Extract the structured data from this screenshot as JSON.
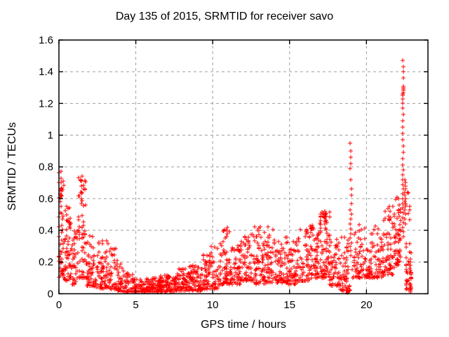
{
  "chart_data": {
    "type": "scatter",
    "title": "Day 135 of 2015, SRMTID for receiver savo",
    "xlabel": "GPS time / hours",
    "ylabel": "SRMTID / TECUs",
    "xlim": [
      0,
      24
    ],
    "ylim": [
      0,
      1.6
    ],
    "xticks": [
      {
        "v": 0,
        "label": "0"
      },
      {
        "v": 5,
        "label": "5"
      },
      {
        "v": 10,
        "label": "10"
      },
      {
        "v": 15,
        "label": "15"
      },
      {
        "v": 20,
        "label": "20"
      }
    ],
    "yticks": [
      {
        "v": 0.0,
        "label": "0"
      },
      {
        "v": 0.2,
        "label": "0.2"
      },
      {
        "v": 0.4,
        "label": "0.4"
      },
      {
        "v": 0.6,
        "label": "0.6"
      },
      {
        "v": 0.8,
        "label": "0.8"
      },
      {
        "v": 1.0,
        "label": "1"
      },
      {
        "v": 1.2,
        "label": "1.2"
      },
      {
        "v": 1.4,
        "label": "1.4"
      },
      {
        "v": 1.6,
        "label": "1.6"
      }
    ],
    "grid": {
      "show": true,
      "color": "#9e9e9e",
      "dash": "4 4"
    },
    "marker": {
      "shape": "plus",
      "color": "#ff0000",
      "size": 7
    },
    "border_color": "#000000",
    "seed": 42,
    "segment_fields": [
      "t_start",
      "t_end",
      "n_points",
      "value_min",
      "value_max",
      "skew_toward_min"
    ],
    "segments": [
      [
        0.0,
        0.35,
        55,
        0.1,
        0.77,
        1.6
      ],
      [
        0.35,
        0.8,
        55,
        0.08,
        0.56,
        1.5
      ],
      [
        0.8,
        1.25,
        45,
        0.06,
        0.45,
        1.8
      ],
      [
        1.25,
        1.75,
        55,
        0.1,
        0.74,
        1.6
      ],
      [
        1.75,
        2.2,
        45,
        0.05,
        0.38,
        1.8
      ],
      [
        2.2,
        2.7,
        45,
        0.04,
        0.34,
        1.9
      ],
      [
        2.7,
        3.2,
        45,
        0.03,
        0.34,
        2.0
      ],
      [
        3.2,
        3.7,
        40,
        0.03,
        0.3,
        2.2
      ],
      [
        3.7,
        4.2,
        40,
        0.02,
        0.22,
        2.2
      ],
      [
        4.2,
        4.8,
        45,
        0.01,
        0.13,
        2.0
      ],
      [
        4.8,
        5.5,
        60,
        0.01,
        0.1,
        1.8
      ],
      [
        5.5,
        6.5,
        95,
        0.01,
        0.1,
        1.8
      ],
      [
        6.5,
        7.5,
        95,
        0.01,
        0.12,
        1.8
      ],
      [
        7.5,
        8.5,
        95,
        0.02,
        0.16,
        1.9
      ],
      [
        8.5,
        9.3,
        80,
        0.02,
        0.18,
        1.9
      ],
      [
        9.3,
        9.9,
        55,
        0.03,
        0.26,
        2.0
      ],
      [
        9.9,
        10.4,
        40,
        0.03,
        0.3,
        2.0
      ],
      [
        10.4,
        11.2,
        70,
        0.06,
        0.43,
        1.9
      ],
      [
        11.2,
        11.9,
        60,
        0.06,
        0.32,
        1.8
      ],
      [
        11.9,
        12.6,
        65,
        0.08,
        0.39,
        1.8
      ],
      [
        12.6,
        13.4,
        70,
        0.06,
        0.43,
        1.8
      ],
      [
        13.4,
        14.1,
        65,
        0.07,
        0.43,
        1.8
      ],
      [
        14.1,
        14.8,
        60,
        0.07,
        0.36,
        1.8
      ],
      [
        14.8,
        15.5,
        60,
        0.06,
        0.34,
        1.8
      ],
      [
        15.5,
        16.3,
        65,
        0.08,
        0.43,
        1.8
      ],
      [
        16.3,
        17.0,
        65,
        0.1,
        0.44,
        1.7
      ],
      [
        17.0,
        17.6,
        80,
        0.1,
        0.52,
        1.5
      ],
      [
        17.6,
        18.3,
        55,
        0.05,
        0.36,
        1.8
      ],
      [
        18.3,
        18.9,
        55,
        0.02,
        0.36,
        1.9
      ],
      [
        19.1,
        19.7,
        50,
        0.1,
        0.46,
        1.7
      ],
      [
        19.7,
        20.4,
        55,
        0.1,
        0.43,
        1.7
      ],
      [
        20.4,
        21.1,
        55,
        0.1,
        0.46,
        1.7
      ],
      [
        21.1,
        21.8,
        60,
        0.12,
        0.56,
        1.6
      ],
      [
        21.8,
        22.25,
        55,
        0.18,
        0.62,
        1.4
      ],
      [
        22.55,
        22.95,
        40,
        0.03,
        0.65,
        2.2
      ]
    ],
    "spike_columns": [
      {
        "t": 0.12,
        "values": [
          0.77,
          0.73,
          0.7,
          0.66,
          0.62,
          0.58,
          0.55
        ]
      },
      {
        "t": 1.5,
        "values": [
          0.74,
          0.71,
          0.68,
          0.64,
          0.6,
          0.57
        ]
      },
      {
        "t": 10.95,
        "values": [
          0.42,
          0.4,
          0.38,
          0.36
        ]
      },
      {
        "t": 17.3,
        "values": [
          0.5,
          0.48,
          0.46,
          0.44
        ]
      },
      {
        "t": 18.8,
        "values": [
          0.01,
          0.015,
          0.02,
          0.008,
          0.012,
          0.018,
          0.005,
          0.025
        ]
      },
      {
        "t": 18.98,
        "values": [
          0.95,
          0.9,
          0.86,
          0.82,
          0.79,
          0.72,
          0.66,
          0.62,
          0.57,
          0.53,
          0.5,
          0.47,
          0.44,
          0.41,
          0.38,
          0.35,
          0.32,
          0.3,
          0.27,
          0.24
        ]
      },
      {
        "t": 21.5,
        "values": [
          0.55,
          0.52,
          0.49,
          0.46
        ]
      },
      {
        "t": 22.38,
        "values": [
          1.47,
          1.43,
          1.4,
          1.36,
          1.31,
          1.3,
          1.29,
          1.28,
          1.27,
          1.26,
          1.25,
          1.23,
          1.2,
          1.17,
          1.13,
          1.09,
          1.05,
          1.01,
          0.97,
          0.93,
          0.89,
          0.85,
          0.81,
          0.78,
          0.75,
          0.72,
          0.69,
          0.66,
          0.63,
          0.6,
          0.57,
          0.54,
          0.51,
          0.48,
          0.45,
          0.42,
          0.39,
          0.36
        ]
      },
      {
        "t": 22.5,
        "values": [
          0.72,
          0.7,
          0.68,
          0.66,
          0.64,
          0.62,
          0.6,
          0.58,
          0.57,
          0.56,
          0.55,
          0.53,
          0.5,
          0.47,
          0.44
        ]
      },
      {
        "t": 22.85,
        "values": [
          0.02,
          0.04,
          0.06,
          0.03,
          0.05,
          0.01,
          0.1,
          0.12,
          0.15,
          0.18,
          0.2,
          0.22,
          0.16,
          0.13
        ]
      }
    ]
  }
}
